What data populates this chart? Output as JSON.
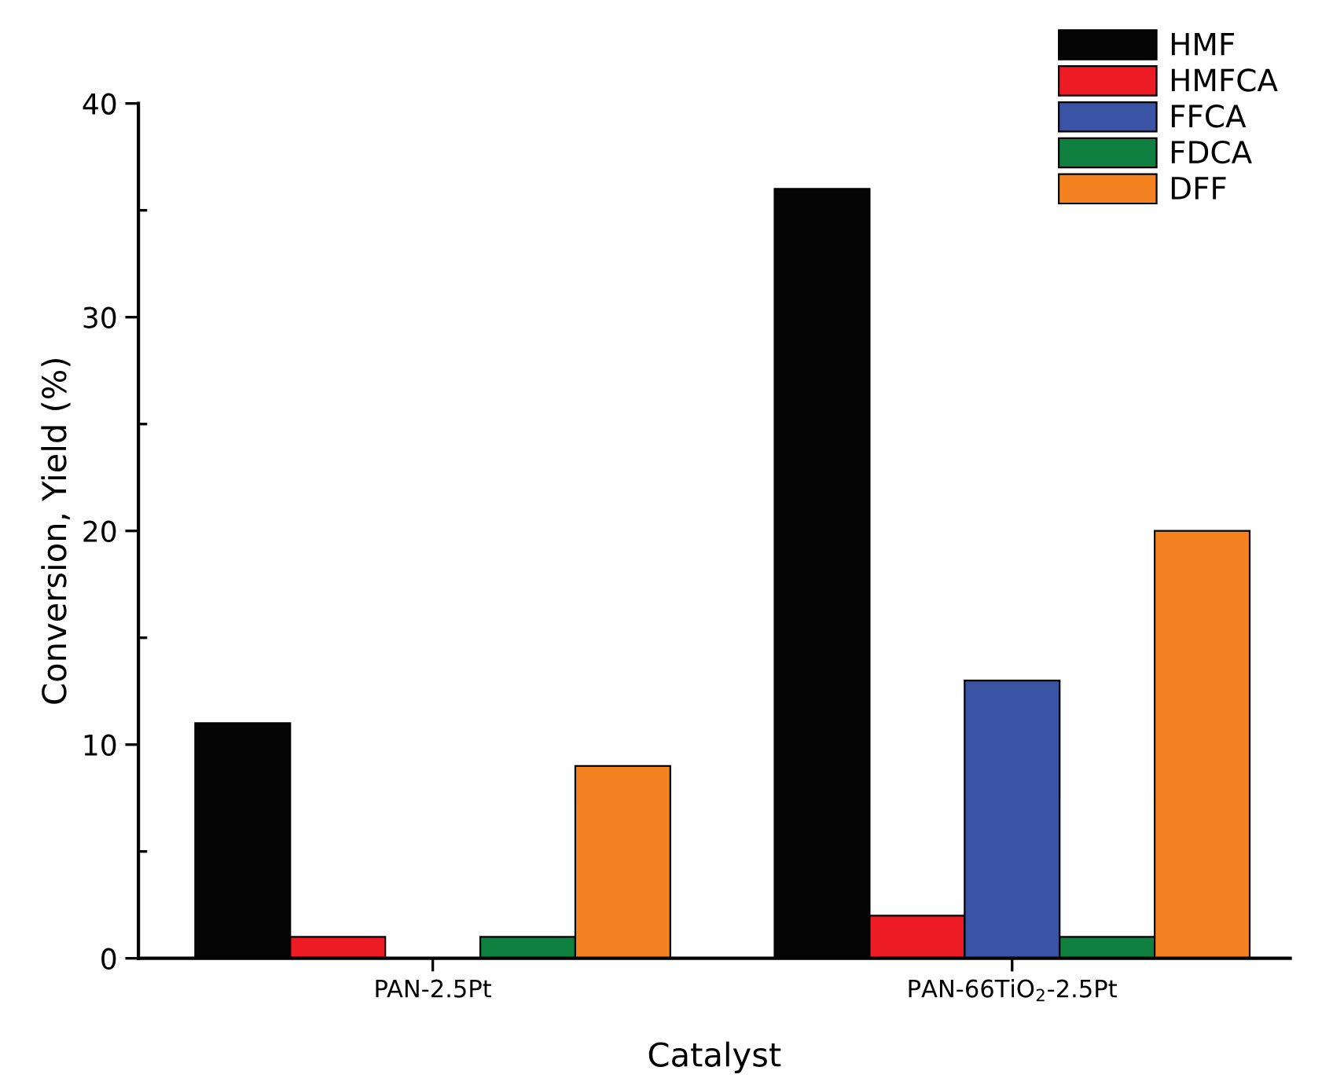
{
  "chart_data": {
    "type": "bar",
    "xlabel": "Catalyst",
    "ylabel": "Conversion, Yield (%)",
    "categories": [
      "PAN-2.5Pt",
      "PAN-66TiO$_{2}$-2.5Pt"
    ],
    "series": [
      {
        "name": "HMF",
        "color": "#050505",
        "values": [
          11,
          36
        ]
      },
      {
        "name": "HMFCA",
        "color": "#ed1c24",
        "values": [
          1,
          2
        ]
      },
      {
        "name": "FFCA",
        "color": "#3a53a4",
        "values": [
          0,
          13
        ]
      },
      {
        "name": "FDCA",
        "color": "#0f8040",
        "values": [
          1,
          1
        ]
      },
      {
        "name": "DFF",
        "color": "#f58220",
        "values": [
          9,
          20
        ]
      }
    ],
    "ylim": [
      0,
      40
    ],
    "yticks": [
      0,
      10,
      20,
      30,
      40
    ],
    "grid": false,
    "legend": "top right"
  }
}
